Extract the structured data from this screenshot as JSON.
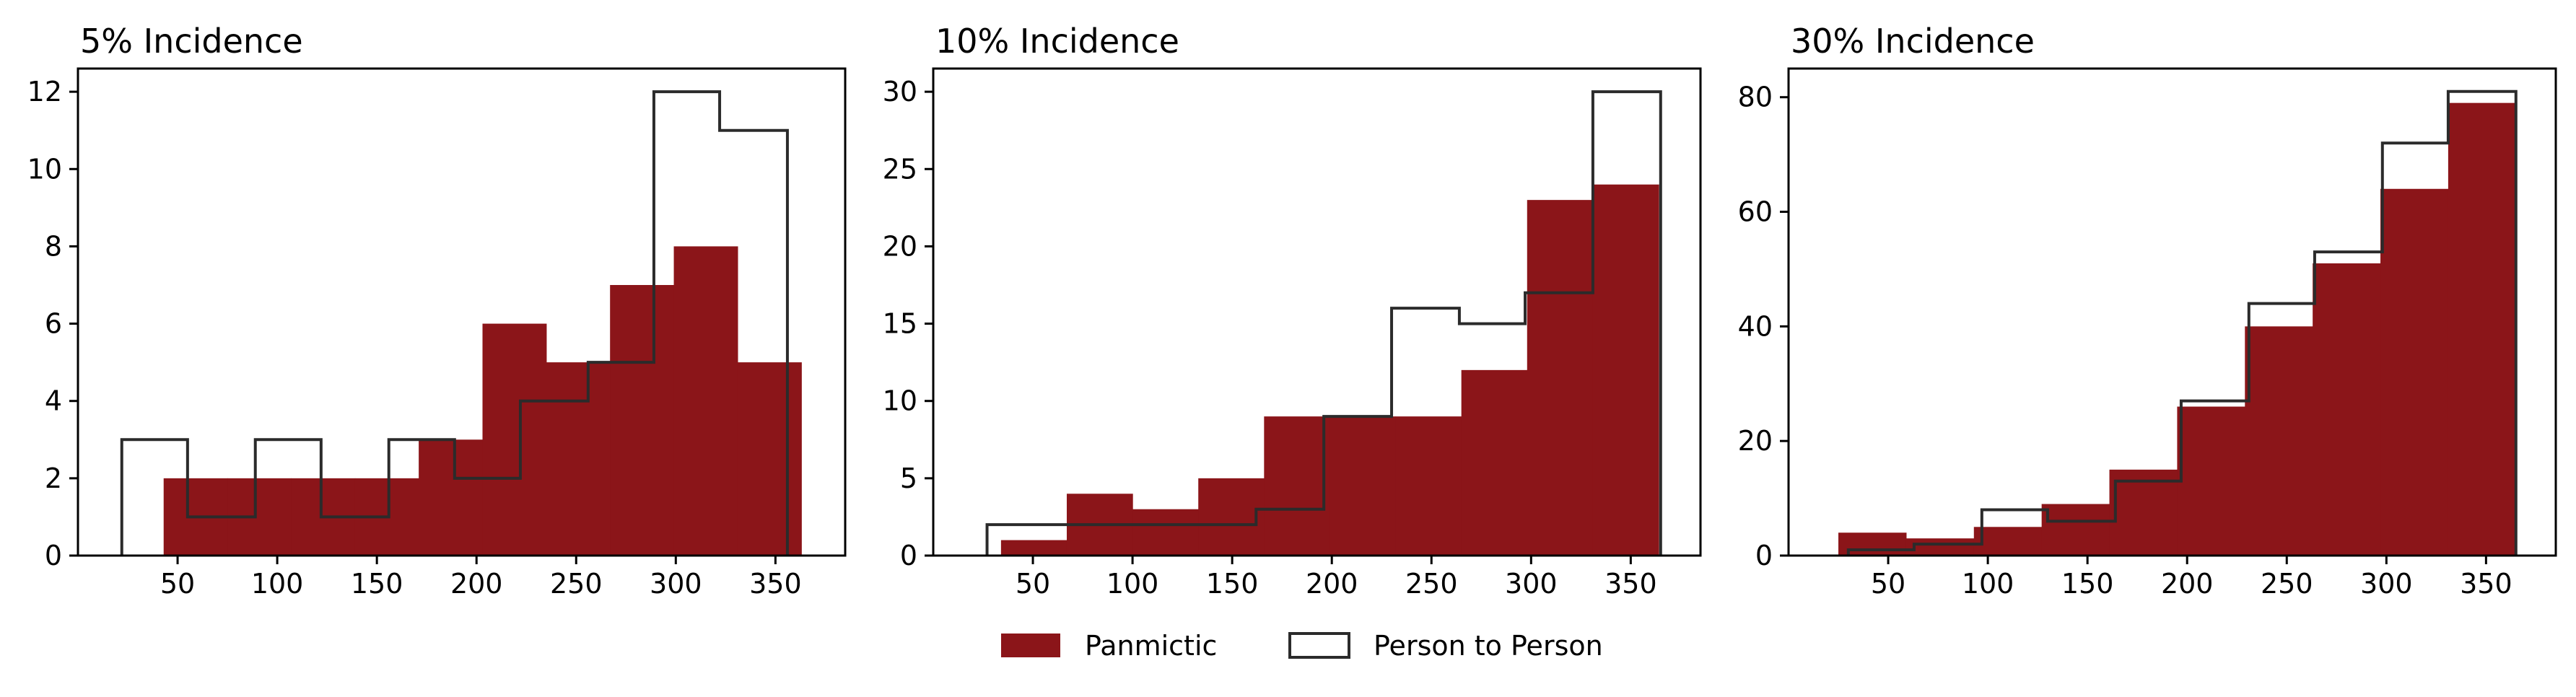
{
  "colors": {
    "panmictic": "#8b1519",
    "person_to_person": "#2b2b2b"
  },
  "legend": {
    "placement": "bottom-center",
    "items": [
      {
        "label": "Panmictic",
        "style": "filled"
      },
      {
        "label": "Person to Person",
        "style": "outline"
      }
    ]
  },
  "chart_data": [
    {
      "type": "bar",
      "title": "5% Incidence",
      "xlabel": "",
      "ylabel": "",
      "xlim": [
        0,
        385
      ],
      "ylim": [
        0,
        12.6
      ],
      "xticks": [
        50,
        100,
        150,
        200,
        250,
        300,
        350
      ],
      "yticks": [
        0,
        2,
        4,
        6,
        8,
        10,
        12
      ],
      "grid": false,
      "series": [
        {
          "name": "Panmictic",
          "style": "filled",
          "edges": [
            43,
            75,
            107,
            139,
            171,
            203,
            235,
            267,
            299,
            331,
            363
          ],
          "values": [
            2,
            2,
            2,
            2,
            3,
            6,
            5,
            7,
            8,
            5
          ]
        },
        {
          "name": "Person to Person",
          "style": "outline",
          "edges": [
            22,
            55,
            89,
            122,
            156,
            189,
            222,
            256,
            289,
            322,
            356
          ],
          "values": [
            3,
            1,
            3,
            1,
            3,
            2,
            4,
            5,
            12,
            11
          ]
        }
      ]
    },
    {
      "type": "bar",
      "title": "10% Incidence",
      "xlabel": "",
      "ylabel": "",
      "xlim": [
        0,
        385
      ],
      "ylim": [
        0,
        31.5
      ],
      "xticks": [
        50,
        100,
        150,
        200,
        250,
        300,
        350
      ],
      "yticks": [
        0,
        5,
        10,
        15,
        20,
        25,
        30
      ],
      "grid": false,
      "series": [
        {
          "name": "Panmictic",
          "style": "filled",
          "edges": [
            34,
            67,
            100,
            133,
            166,
            199,
            232,
            265,
            298,
            331,
            364
          ],
          "values": [
            1,
            4,
            3,
            5,
            9,
            9,
            9,
            12,
            23,
            24
          ]
        },
        {
          "name": "Person to Person",
          "style": "outline",
          "edges": [
            27,
            61,
            95,
            128,
            162,
            196,
            230,
            264,
            297,
            331,
            365
          ],
          "values": [
            2,
            2,
            2,
            2,
            3,
            9,
            16,
            15,
            17,
            30
          ]
        }
      ]
    },
    {
      "type": "bar",
      "title": "30% Incidence",
      "xlabel": "",
      "ylabel": "",
      "xlim": [
        0,
        385
      ],
      "ylim": [
        0,
        85
      ],
      "xticks": [
        50,
        100,
        150,
        200,
        250,
        300,
        350
      ],
      "yticks": [
        0,
        20,
        40,
        60,
        80
      ],
      "grid": false,
      "series": [
        {
          "name": "Panmictic",
          "style": "filled",
          "edges": [
            25,
            59,
            93,
            127,
            161,
            195,
            229,
            263,
            297,
            331,
            365
          ],
          "values": [
            4,
            3,
            5,
            9,
            15,
            26,
            40,
            51,
            64,
            79
          ]
        },
        {
          "name": "Person to Person",
          "style": "outline",
          "edges": [
            30,
            63,
            97,
            130,
            164,
            197,
            231,
            264,
            298,
            331,
            365
          ],
          "values": [
            1,
            2,
            8,
            6,
            13,
            27,
            44,
            53,
            72,
            81
          ]
        }
      ]
    }
  ]
}
